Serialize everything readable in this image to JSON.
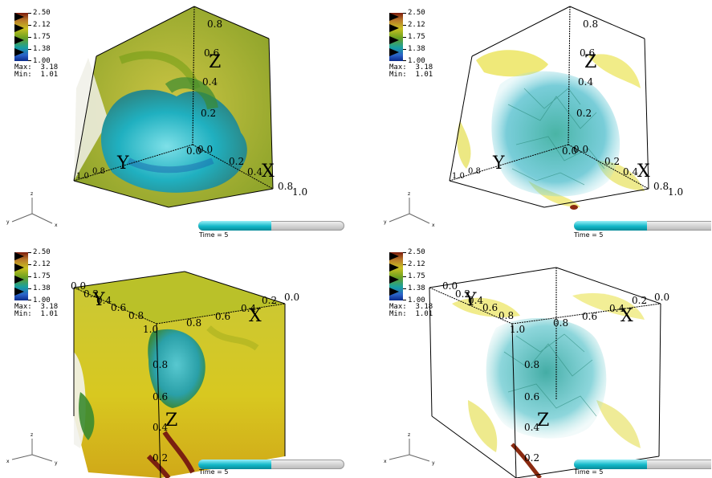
{
  "colorbar": {
    "ticks": [
      "2.50",
      "2.12",
      "1.75",
      "1.38",
      "1.00"
    ],
    "max_label": "Max:  3.18",
    "min_label": "Min:  1.01",
    "colors": [
      "#7b1a0c",
      "#c8c020",
      "#6aa020",
      "#18a0a0",
      "#0a2a8a"
    ]
  },
  "time": {
    "label": "Time = 5",
    "progress": 0.5
  },
  "panels": [
    {
      "axis_labels": {
        "x": "X",
        "y": "Y",
        "z": "Z"
      },
      "ticks": [
        "0.8",
        "0.6",
        "0.4",
        "0.2",
        "0.0",
        "0.0",
        "0.2",
        "0.4",
        "0.8",
        "1.0",
        "1.0",
        "0.8"
      ],
      "triad": {
        "x": "x",
        "y": "y",
        "z": "z"
      },
      "style": "opaque"
    },
    {
      "axis_labels": {
        "x": "X",
        "y": "Y",
        "z": "Z"
      },
      "ticks": [
        "0.8",
        "0.6",
        "0.4",
        "0.2",
        "0.0",
        "0.0",
        "0.2",
        "0.4",
        "0.8",
        "1.0",
        "1.0",
        "0.8"
      ],
      "triad": {
        "x": "x",
        "y": "y",
        "z": "z"
      },
      "style": "transparent"
    },
    {
      "axis_labels": {
        "x": "X",
        "y": "Y",
        "z": "Z"
      },
      "ticks": [
        "0.0",
        "0.2",
        "0.4",
        "0.6",
        "0.8",
        "1.0",
        "0.8",
        "0.6",
        "0.4",
        "0.2",
        "0.0",
        "0.8",
        "0.6",
        "0.4",
        "0.2"
      ],
      "triad": {
        "x": "x",
        "y": "y",
        "z": "z"
      },
      "style": "opaque"
    },
    {
      "axis_labels": {
        "x": "X",
        "y": "Y",
        "z": "Z"
      },
      "ticks": [
        "0.0",
        "0.2",
        "0.4",
        "0.6",
        "0.8",
        "1.0",
        "0.8",
        "0.6",
        "0.4",
        "0.2",
        "0.0",
        "0.8",
        "0.6",
        "0.4",
        "0.2"
      ],
      "triad": {
        "x": "x",
        "y": "y",
        "z": "z"
      },
      "style": "transparent"
    }
  ]
}
